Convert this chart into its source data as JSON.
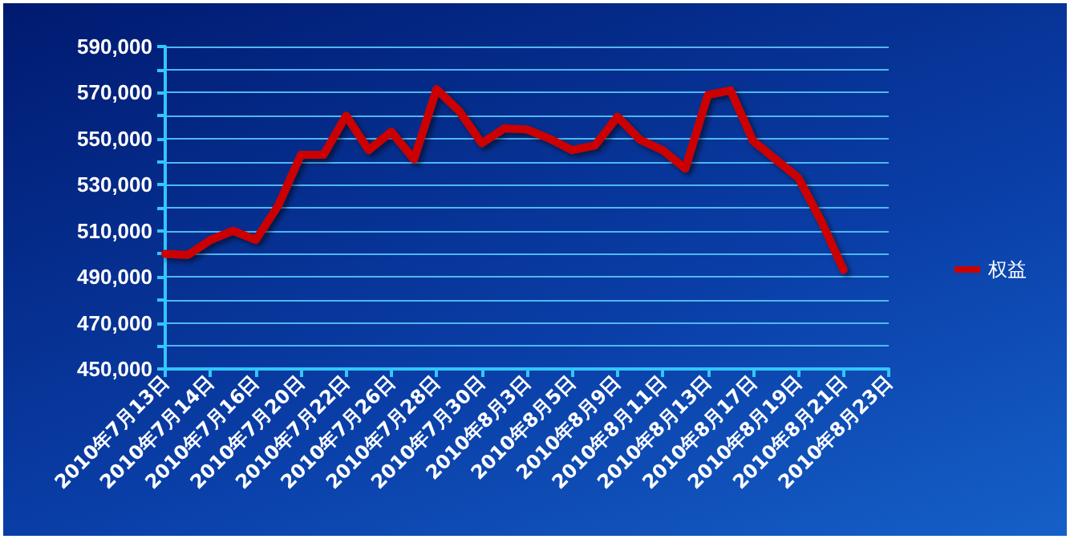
{
  "chart_data": {
    "type": "line",
    "categories": [
      "2010年7月13日",
      null,
      "2010年7月14日",
      null,
      "2010年7月16日",
      null,
      "2010年7月20日",
      null,
      "2010年7月22日",
      null,
      "2010年7月26日",
      null,
      "2010年7月28日",
      null,
      "2010年7月30日",
      null,
      "2010年8月3日",
      null,
      "2010年8月5日",
      null,
      "2010年8月9日",
      null,
      "2010年8月11日",
      null,
      "2010年8月13日",
      null,
      "2010年8月17日",
      null,
      "2010年8月19日",
      null,
      "2010年8月21日",
      null,
      "2010年8月23日"
    ],
    "series": [
      {
        "name": "权益",
        "color": "#cc0000",
        "values": [
          500000,
          499500,
          506000,
          510000,
          506000,
          521000,
          543000,
          543000,
          560000,
          545000,
          553000,
          541000,
          571500,
          562000,
          548000,
          554500,
          554000,
          550000,
          545000,
          547000,
          559500,
          549500,
          545000,
          537000,
          569000,
          571000,
          549000,
          541000,
          533000,
          514500,
          493000,
          null,
          null
        ]
      }
    ],
    "ylim": [
      450000,
      590000
    ],
    "yticks": [
      {
        "value": 450000,
        "label": "450,000"
      },
      {
        "value": 460000,
        "label": null
      },
      {
        "value": 470000,
        "label": "470,000"
      },
      {
        "value": 480000,
        "label": null
      },
      {
        "value": 490000,
        "label": "490,000"
      },
      {
        "value": 500000,
        "label": null
      },
      {
        "value": 510000,
        "label": "510,000"
      },
      {
        "value": 520000,
        "label": null
      },
      {
        "value": 530000,
        "label": "530,000"
      },
      {
        "value": 540000,
        "label": null
      },
      {
        "value": 550000,
        "label": "550,000"
      },
      {
        "value": 560000,
        "label": null
      },
      {
        "value": 570000,
        "label": "570,000"
      },
      {
        "value": 580000,
        "label": null
      },
      {
        "value": 590000,
        "label": "590,000"
      }
    ],
    "grid": "y",
    "legend": "right",
    "marker": "none",
    "line_style": "solid"
  }
}
